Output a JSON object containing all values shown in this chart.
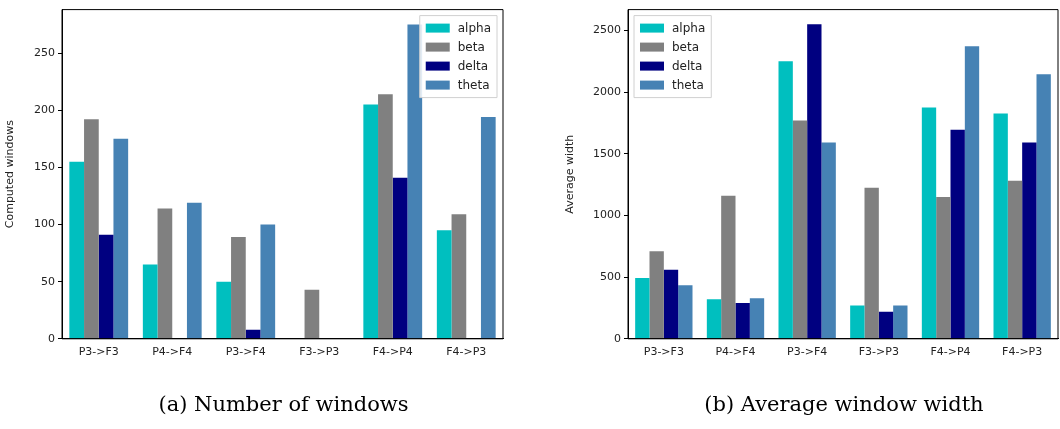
{
  "chart_data": [
    {
      "type": "bar",
      "title": "(a) Number of windows",
      "ylabel": "Computed windows",
      "categories": [
        "P3->F3",
        "P4->F4",
        "P3->F4",
        "F3->P3",
        "F4->P4",
        "F4->P3"
      ],
      "series": [
        {
          "name": "alpha",
          "color": "#00bfbf",
          "values": [
            155,
            65,
            50,
            0,
            205,
            95
          ]
        },
        {
          "name": "beta",
          "color": "#808080",
          "values": [
            192,
            114,
            89,
            43,
            214,
            109
          ]
        },
        {
          "name": "delta",
          "color": "#000080",
          "values": [
            91,
            0,
            8,
            0,
            141,
            0
          ]
        },
        {
          "name": "theta",
          "color": "#4682b4",
          "values": [
            175,
            119,
            100,
            0,
            275,
            194
          ]
        }
      ],
      "ylim": [
        0,
        288
      ],
      "yticks": [
        0,
        50,
        100,
        150,
        200,
        250
      ],
      "grid": false,
      "legend": "top right"
    },
    {
      "type": "bar",
      "title": "(b) Average window width",
      "ylabel": "Average width",
      "categories": [
        "P3->F3",
        "P4->F4",
        "P3->F4",
        "F3->P3",
        "F4->P4",
        "F4->P3"
      ],
      "series": [
        {
          "name": "alpha",
          "color": "#00bfbf",
          "values": [
            493,
            320,
            2250,
            270,
            1875,
            1825
          ]
        },
        {
          "name": "beta",
          "color": "#808080",
          "values": [
            710,
            1160,
            1770,
            1225,
            1150,
            1280
          ]
        },
        {
          "name": "delta",
          "color": "#000080",
          "values": [
            559,
            290,
            2550,
            220,
            1695,
            1590
          ]
        },
        {
          "name": "theta",
          "color": "#4682b4",
          "values": [
            434,
            328,
            1590,
            270,
            2370,
            2145
          ]
        }
      ],
      "ylim": [
        0,
        2668
      ],
      "yticks": [
        0,
        500,
        1000,
        1500,
        2000,
        2500
      ],
      "grid": false,
      "legend": "top left"
    }
  ]
}
